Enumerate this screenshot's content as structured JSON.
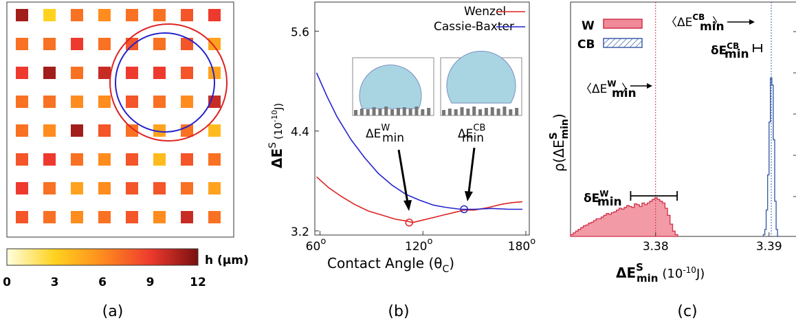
{
  "chart_data": [
    {
      "panel": "(a)",
      "type": "heatmap",
      "colorbar": {
        "label": "h (µm)",
        "ticks": [
          "0",
          "3",
          "6",
          "9",
          "12"
        ],
        "range": [
          0,
          12
        ]
      },
      "grid_heights": [
        [
          11,
          3,
          7,
          6,
          7,
          7,
          8,
          9
        ],
        [
          7,
          7,
          9,
          7,
          8,
          7,
          8,
          5
        ],
        [
          9,
          11,
          7,
          10,
          9,
          9,
          8,
          5
        ],
        [
          7,
          7,
          6,
          6,
          8,
          7,
          6,
          10
        ],
        [
          7,
          6,
          11,
          8,
          7,
          5,
          7,
          4
        ],
        [
          8,
          9,
          7,
          6,
          8,
          4,
          8,
          7
        ],
        [
          9,
          7,
          5,
          6,
          8,
          8,
          7,
          5
        ],
        [
          8,
          7,
          6,
          7,
          8,
          6,
          10,
          7
        ]
      ],
      "circles": [
        {
          "color": "#dd2222"
        },
        {
          "color": "#2222cc"
        }
      ]
    },
    {
      "panel": "(b)",
      "type": "line",
      "xlabel": "Contact Angle (θ",
      "xlabel_sub": "C",
      "ylabel_main": "ΔE",
      "ylabel_sup": "S",
      "ylabel_unit": "(10",
      "ylabel_unit_sup": "-10",
      "ylabel_unit_end": "J)",
      "xlim": [
        57,
        182
      ],
      "ylim": [
        3.15,
        5.95
      ],
      "xticks": [
        {
          "value": 60,
          "label": "60"
        },
        {
          "value": 120,
          "label": "120"
        },
        {
          "value": 180,
          "label": "180"
        }
      ],
      "xtick_sup": "o",
      "yticks": [
        {
          "value": 3.2,
          "label": "3.2"
        },
        {
          "value": 4.4,
          "label": "4.4"
        },
        {
          "value": 5.6,
          "label": "5.6"
        }
      ],
      "series": [
        {
          "name": "Wenzel",
          "color": "#dd2222",
          "x": [
            58,
            65,
            72,
            80,
            88,
            96,
            104,
            110,
            114,
            120,
            126,
            132,
            138,
            144,
            150,
            158,
            166,
            172,
            178
          ],
          "y": [
            3.85,
            3.72,
            3.62,
            3.52,
            3.44,
            3.39,
            3.34,
            3.32,
            3.3,
            3.33,
            3.36,
            3.39,
            3.42,
            3.45,
            3.45,
            3.48,
            3.52,
            3.54,
            3.55
          ]
        },
        {
          "name": "Cassie-Baxter",
          "color": "#2222cc",
          "x": [
            58,
            64,
            70,
            78,
            86,
            94,
            102,
            110,
            118,
            126,
            134,
            142,
            150,
            160,
            170,
            178
          ],
          "y": [
            5.1,
            4.82,
            4.57,
            4.3,
            4.08,
            3.89,
            3.75,
            3.64,
            3.57,
            3.51,
            3.48,
            3.46,
            3.46,
            3.47,
            3.46,
            3.46
          ]
        }
      ],
      "minima": [
        {
          "label_main": "ΔE",
          "label_sup": "W",
          "label_sub": "min",
          "x": 112,
          "y": 3.3,
          "color": "#dd2222"
        },
        {
          "label_main": "ΔE",
          "label_sup": "CB",
          "label_sub": "min",
          "x": 144,
          "y": 3.46,
          "color": "#2222cc"
        }
      ]
    },
    {
      "panel": "(c)",
      "type": "histogram",
      "xlabel_main": "ΔE",
      "xlabel_sup": "S",
      "xlabel_sub": "min",
      "xlabel_unit": "(10",
      "xlabel_unit_sup": "-10",
      "xlabel_unit_end": "J)",
      "ylabel_main": "ρ(ΔE",
      "ylabel_sup": "S",
      "ylabel_sub": "min",
      "ylabel_end": ")",
      "xlim": [
        3.3725,
        3.3925
      ],
      "xticks": [
        {
          "value": 3.38,
          "label": "3.38"
        },
        {
          "value": 3.39,
          "label": "3.39"
        }
      ],
      "legend": [
        {
          "label": "W",
          "fill": "#f08a98",
          "stroke": "#d03048",
          "style": "solid"
        },
        {
          "label": "CB",
          "fill": "#ffffff",
          "stroke": "#3a5fa8",
          "style": "hatched"
        }
      ],
      "series": [
        {
          "name": "W",
          "color": "#d03048",
          "bin_start": 3.3725,
          "bin_width": 0.000225,
          "heights": [
            2,
            4,
            6,
            8,
            10,
            12,
            13,
            15,
            16,
            18,
            20,
            20,
            22,
            24,
            26,
            25,
            27,
            28,
            30,
            32,
            31,
            33,
            35,
            34,
            33,
            37,
            36,
            34,
            38,
            36,
            38,
            40,
            42,
            44,
            42,
            40,
            38,
            32,
            24,
            14,
            6,
            2
          ]
        },
        {
          "name": "CB",
          "color": "#3a5fa8",
          "bin_start": 3.3895,
          "bin_width": 0.000125,
          "heights": [
            2,
            8,
            30,
            70,
            130,
            180,
            172,
            110,
            40,
            8,
            0
          ]
        }
      ],
      "annotations": [
        {
          "kind": "mean_line",
          "series": "W",
          "value": 3.38,
          "color": "#d03048",
          "text_main": "〈ΔE",
          "text_sup": "W",
          "text_sub": "min",
          "text_end": "〉"
        },
        {
          "kind": "mean_line",
          "series": "CB",
          "value": 3.3902,
          "color": "#3a5fa8",
          "text_main": "〈ΔE",
          "text_sup": "CB",
          "text_sub": "min",
          "text_end": "〉"
        },
        {
          "kind": "range",
          "series": "W",
          "from": 3.3778,
          "to": 3.3819,
          "text_main": "δE",
          "text_sup": "W",
          "text_sub": "min"
        },
        {
          "kind": "range",
          "series": "CB",
          "from": 3.3898,
          "to": 3.3906,
          "text_main": "δE",
          "text_sup": "CB",
          "text_sub": "min"
        }
      ]
    }
  ]
}
